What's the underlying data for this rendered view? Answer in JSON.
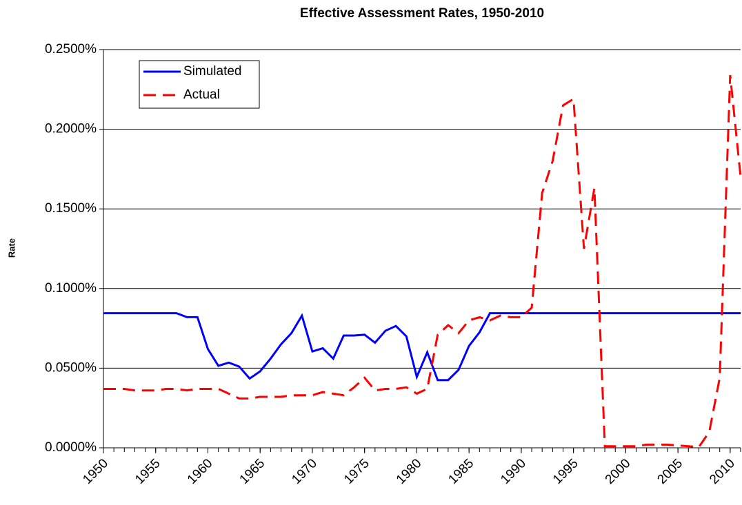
{
  "chart_data": {
    "type": "line",
    "title": "Effective Assessment Rates, 1950-2010",
    "y_label": "Rate",
    "x": [
      1950,
      1951,
      1952,
      1953,
      1954,
      1955,
      1956,
      1957,
      1958,
      1959,
      1960,
      1961,
      1962,
      1963,
      1964,
      1965,
      1966,
      1967,
      1968,
      1969,
      1970,
      1971,
      1972,
      1973,
      1974,
      1975,
      1976,
      1977,
      1978,
      1979,
      1980,
      1981,
      1982,
      1983,
      1984,
      1985,
      1986,
      1987,
      1988,
      1989,
      1990,
      1991,
      1992,
      1993,
      1994,
      1995,
      1996,
      1997,
      1998,
      1999,
      2000,
      2001,
      2002,
      2003,
      2004,
      2005,
      2006,
      2007,
      2008,
      2009,
      2010,
      2011
    ],
    "series": [
      {
        "name": "Simulated",
        "color": "#0000ff",
        "dash": false,
        "values": [
          0.0845,
          0.0845,
          0.0845,
          0.0845,
          0.0845,
          0.0845,
          0.0845,
          0.0845,
          0.082,
          0.082,
          0.062,
          0.0515,
          0.0535,
          0.051,
          0.0435,
          0.048,
          0.056,
          0.065,
          0.072,
          0.083,
          0.0605,
          0.0625,
          0.056,
          0.0705,
          0.0705,
          0.071,
          0.066,
          0.0735,
          0.0765,
          0.07,
          0.0445,
          0.06,
          0.0425,
          0.0425,
          0.049,
          0.064,
          0.0725,
          0.0845,
          0.0845,
          0.0845,
          0.0845,
          0.0845,
          0.0845,
          0.0845,
          0.0845,
          0.0845,
          0.0845,
          0.0845,
          0.0845,
          0.0845,
          0.0845,
          0.0845,
          0.0845,
          0.0845,
          0.0845,
          0.0845,
          0.0845,
          0.0845,
          0.0845,
          0.0845,
          0.0845,
          0.0845
        ]
      },
      {
        "name": "Actual",
        "color": "#ff0000",
        "dash": true,
        "values": [
          0.037,
          0.037,
          0.037,
          0.036,
          0.036,
          0.036,
          0.037,
          0.037,
          0.036,
          0.037,
          0.037,
          0.037,
          0.034,
          0.031,
          0.031,
          0.032,
          0.032,
          0.032,
          0.033,
          0.033,
          0.033,
          0.035,
          0.034,
          0.033,
          0.038,
          0.044,
          0.036,
          0.037,
          0.037,
          0.038,
          0.034,
          0.037,
          0.071,
          0.077,
          0.072,
          0.08,
          0.082,
          0.08,
          0.083,
          0.082,
          0.082,
          0.088,
          0.16,
          0.18,
          0.215,
          0.219,
          0.125,
          0.163,
          0.001,
          0.001,
          0.001,
          0.001,
          0.002,
          0.002,
          0.002,
          0.0015,
          0.001,
          0.0005,
          0.01,
          0.044,
          0.234,
          0.17
        ]
      }
    ],
    "xlim": [
      1950,
      2011
    ],
    "xticks": [
      1950,
      1955,
      1960,
      1965,
      1970,
      1975,
      1980,
      1985,
      1990,
      1995,
      2000,
      2005,
      2010
    ],
    "ylim": [
      0,
      0.25
    ],
    "yticks": [
      {
        "value": 0,
        "label": "0.0000%"
      },
      {
        "value": 0.05,
        "label": "0.0500%"
      },
      {
        "value": 0.1,
        "label": "0.1000%"
      },
      {
        "value": 0.15,
        "label": "0.1500%"
      },
      {
        "value": 0.2,
        "label": "0.2000%"
      },
      {
        "value": 0.25,
        "label": "0.2500%"
      }
    ],
    "grid": true,
    "legend": "top-left"
  }
}
